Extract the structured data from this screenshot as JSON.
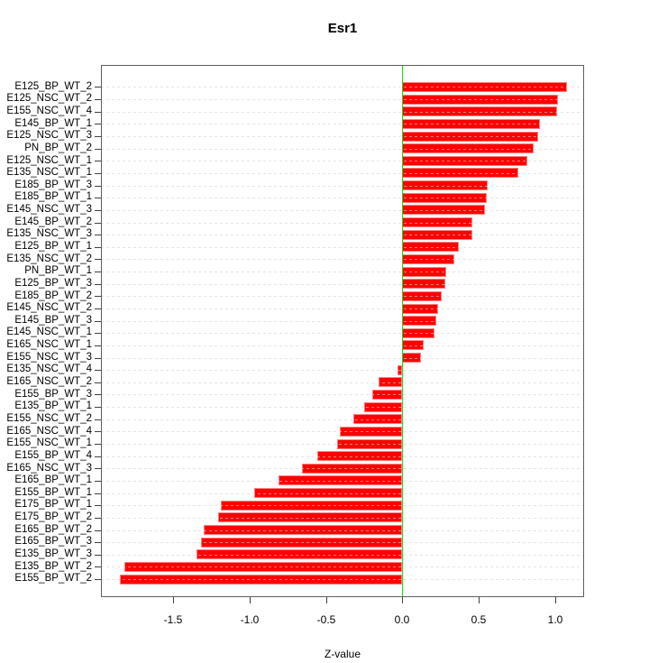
{
  "chart_data": {
    "type": "bar",
    "orientation": "horizontal",
    "title": "Esr1",
    "xlabel": "Z-value",
    "ylabel": "",
    "xlim": [
      -1.975,
      1.19
    ],
    "grid": "dashed-horizontal-per-category",
    "legend": "none",
    "bar_color": "#ff0000",
    "zero_line_color": "#00ee00",
    "grid_color": "#d3d3d3",
    "tick_values": [
      -1.5,
      -1.0,
      -0.5,
      0.0,
      0.5,
      1.0
    ],
    "tick_labels": [
      "-1.5",
      "-1.0",
      "-0.5",
      "0.0",
      "0.5",
      "1.0"
    ],
    "categories": [
      "E125_BP_WT_2",
      "E125_NSC_WT_2",
      "E155_NSC_WT_4",
      "E145_BP_WT_1",
      "E125_NSC_WT_3",
      "PN_BP_WT_2",
      "E125_NSC_WT_1",
      "E135_NSC_WT_1",
      "E185_BP_WT_3",
      "E185_BP_WT_1",
      "E145_NSC_WT_3",
      "E145_BP_WT_2",
      "E135_NSC_WT_3",
      "E125_BP_WT_1",
      "E135_NSC_WT_2",
      "PN_BP_WT_1",
      "E125_BP_WT_3",
      "E185_BP_WT_2",
      "E145_NSC_WT_2",
      "E145_BP_WT_3",
      "E145_NSC_WT_1",
      "E165_NSC_WT_1",
      "E155_NSC_WT_3",
      "E135_NSC_WT_4",
      "E165_NSC_WT_2",
      "E155_BP_WT_3",
      "E135_BP_WT_1",
      "E155_NSC_WT_2",
      "E165_NSC_WT_4",
      "E155_NSC_WT_1",
      "E155_BP_WT_4",
      "E165_NSC_WT_3",
      "E165_BP_WT_1",
      "E155_BP_WT_1",
      "E175_BP_WT_1",
      "E175_BP_WT_2",
      "E165_BP_WT_2",
      "E165_BP_WT_3",
      "E135_BP_WT_3",
      "E135_BP_WT_2",
      "E155_BP_WT_2"
    ],
    "values": [
      1.08,
      1.02,
      1.01,
      0.9,
      0.89,
      0.86,
      0.82,
      0.76,
      0.56,
      0.55,
      0.54,
      0.46,
      0.455,
      0.37,
      0.34,
      0.285,
      0.28,
      0.255,
      0.235,
      0.22,
      0.21,
      0.14,
      0.12,
      -0.035,
      -0.155,
      -0.2,
      -0.25,
      -0.32,
      -0.41,
      -0.43,
      -0.56,
      -0.66,
      -0.81,
      -0.97,
      -1.19,
      -1.21,
      -1.3,
      -1.32,
      -1.35,
      -1.82,
      -1.85
    ]
  }
}
